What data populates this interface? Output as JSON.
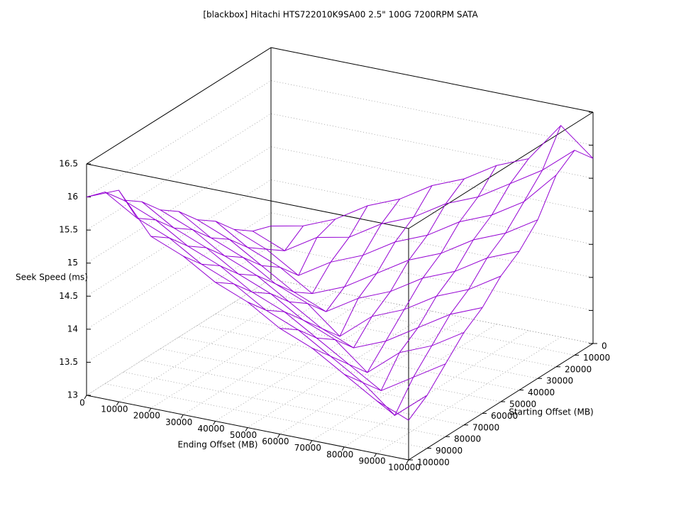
{
  "chart_data": {
    "type": "surface",
    "title": "[blackbox] Hitachi HTS722010K9SA00 2.5\" 100G 7200RPM SATA",
    "x_label": "Ending Offset (MB)",
    "y_label": "Starting Offset (MB)",
    "z_label": "Seek Speed (ms)",
    "x": [
      0,
      10000,
      20000,
      30000,
      40000,
      50000,
      60000,
      70000,
      80000,
      90000,
      100000
    ],
    "y": [
      0,
      10000,
      20000,
      30000,
      40000,
      50000,
      60000,
      70000,
      80000,
      90000,
      100000
    ],
    "values": [
      [
        13.8,
        13.9,
        14.1,
        14.4,
        14.6,
        14.9,
        15.1,
        15.4,
        15.6,
        16.2,
        15.8
      ],
      [
        13.9,
        13.7,
        14.0,
        14.1,
        14.4,
        14.6,
        14.9,
        15.1,
        15.4,
        15.7,
        16.1
      ],
      [
        14.1,
        13.9,
        13.6,
        13.9,
        14.1,
        14.4,
        14.6,
        14.9,
        15.1,
        15.4,
        15.9
      ],
      [
        14.4,
        14.1,
        13.9,
        13.6,
        13.8,
        14.1,
        14.4,
        14.6,
        14.9,
        15.1,
        15.4
      ],
      [
        14.6,
        14.4,
        14.1,
        13.8,
        13.6,
        13.9,
        14.1,
        14.4,
        14.6,
        14.9,
        15.1
      ],
      [
        14.9,
        14.6,
        14.4,
        14.1,
        13.9,
        13.5,
        13.9,
        14.1,
        14.4,
        14.6,
        14.9
      ],
      [
        15.1,
        14.9,
        14.6,
        14.4,
        14.1,
        13.8,
        13.6,
        13.8,
        14.1,
        14.4,
        14.6
      ],
      [
        15.4,
        15.1,
        14.9,
        14.6,
        14.4,
        14.1,
        13.9,
        13.5,
        13.9,
        14.1,
        14.4
      ],
      [
        15.6,
        15.4,
        15.1,
        14.9,
        14.6,
        14.4,
        14.1,
        13.8,
        13.5,
        13.8,
        14.1
      ],
      [
        15.9,
        15.6,
        15.4,
        15.1,
        14.9,
        14.6,
        14.4,
        14.1,
        13.8,
        13.4,
        13.8
      ],
      [
        16.0,
        16.2,
        15.6,
        15.4,
        15.1,
        14.9,
        14.6,
        14.4,
        14.1,
        13.8,
        13.6
      ]
    ],
    "color": "#9400d3",
    "xlim": [
      0,
      100000
    ],
    "ylim": [
      0,
      100000
    ],
    "zlim": [
      13,
      16.5
    ],
    "xticks": [
      0,
      10000,
      20000,
      30000,
      40000,
      50000,
      60000,
      70000,
      80000,
      90000,
      100000
    ],
    "yticks": [
      0,
      10000,
      20000,
      30000,
      40000,
      50000,
      60000,
      70000,
      80000,
      90000,
      100000
    ],
    "zticks": [
      13,
      13.5,
      14,
      14.5,
      15,
      15.5,
      16,
      16.5
    ],
    "grid": true
  }
}
